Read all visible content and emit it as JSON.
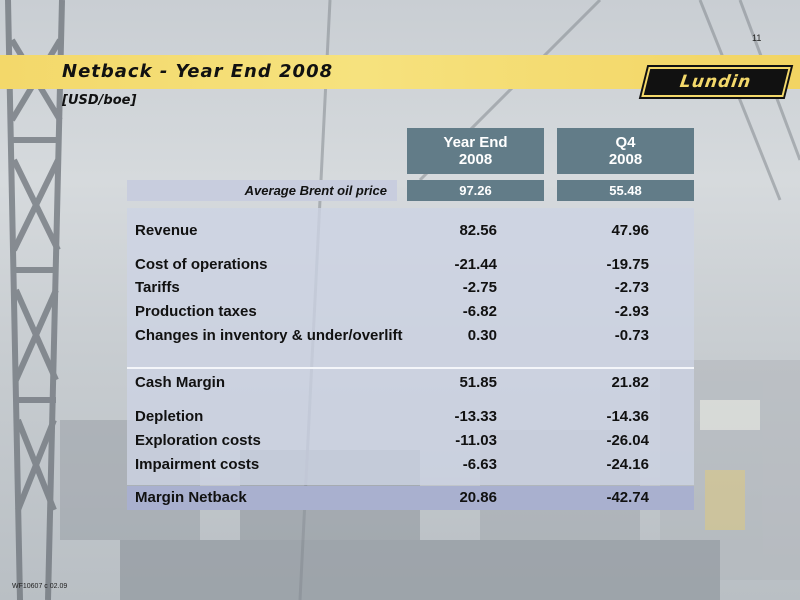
{
  "page_number": "11",
  "title": "Netback - Year End 2008",
  "subtitle": "[USD/boe]",
  "logo_text": "Lundin",
  "footer_code": "WF10607 c 02.09",
  "colors": {
    "title_bar": "#f3d86a",
    "header_bg": "#627c88",
    "table_bg": "#cdd4e4",
    "netback_bg": "#a9b0cf"
  },
  "table": {
    "columns": [
      {
        "line1": "Year End",
        "line2": "2008"
      },
      {
        "line1": "Q4",
        "line2": "2008"
      }
    ],
    "brent": {
      "label": "Average Brent oil price",
      "values": [
        "97.26",
        "55.48"
      ]
    },
    "rows": [
      {
        "label": "Revenue",
        "values": [
          "82.56",
          "47.96"
        ]
      },
      {
        "label": "Cost of operations",
        "values": [
          "-21.44",
          "-19.75"
        ]
      },
      {
        "label": "Tariffs",
        "values": [
          "-2.75",
          "-2.73"
        ]
      },
      {
        "label": "Production taxes",
        "values": [
          "-6.82",
          "-2.93"
        ]
      },
      {
        "label": "Changes in inventory & under/overlift",
        "values": [
          "0.30",
          "-0.73"
        ]
      },
      {
        "label": "Cash Margin",
        "values": [
          "51.85",
          "21.82"
        ]
      },
      {
        "label": "Depletion",
        "values": [
          "-13.33",
          "-14.36"
        ]
      },
      {
        "label": "Exploration costs",
        "values": [
          "-11.03",
          "-26.04"
        ]
      },
      {
        "label": "Impairment costs",
        "values": [
          "-6.63",
          "-24.16"
        ]
      }
    ],
    "netback": {
      "label": "Margin Netback",
      "values": [
        "20.86",
        "-42.74"
      ]
    }
  }
}
